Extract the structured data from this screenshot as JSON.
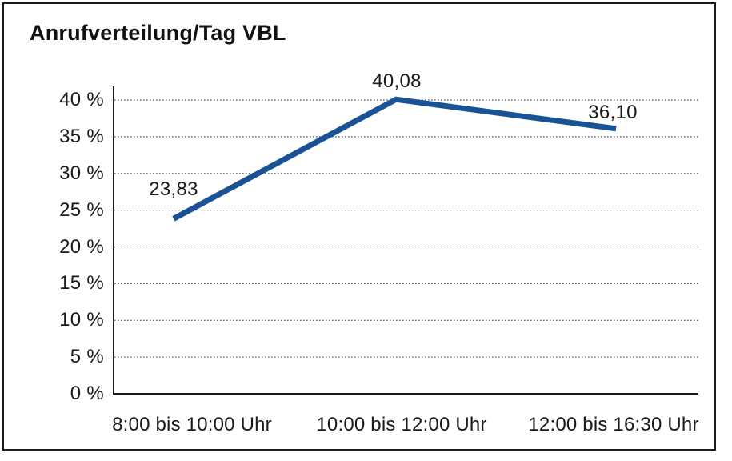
{
  "chart_data": {
    "type": "line",
    "title": "Anrufverteilung/Tag VBL",
    "categories": [
      "8:00 bis 10:00 Uhr",
      "10:00 bis 12:00 Uhr",
      "12:00 bis 16:30 Uhr"
    ],
    "series": [
      {
        "values": [
          23.83,
          40.08,
          36.1
        ],
        "point_labels": [
          "23,83",
          "40,08",
          "36,10"
        ]
      }
    ],
    "xlabel": "",
    "ylabel": "",
    "ylim": [
      0,
      40
    ],
    "ytick_step": 5,
    "ytick_labels": [
      "0 %",
      "5 %",
      "10 %",
      "15 %",
      "20 %",
      "25 %",
      "30 %",
      "35 %",
      "40 %"
    ],
    "grid": "horizontal dotted lines at each 5% tick",
    "legend": "none",
    "colors": {
      "line": "#1A5296",
      "axis": "#1a1a1a",
      "grid": "#555555",
      "text": "#1a1a1a",
      "background": "#ffffff",
      "border": "#1a1a1a"
    }
  }
}
